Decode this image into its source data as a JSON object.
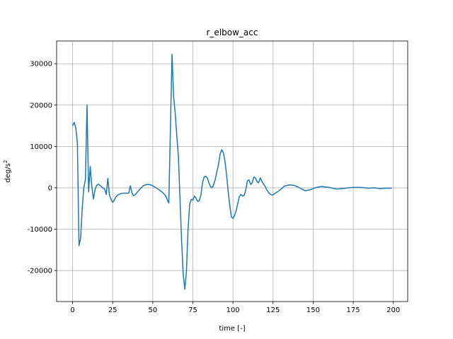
{
  "chart_data": {
    "type": "line",
    "title": "r_elbow_acc",
    "xlabel": "time [-]",
    "ylabel": "deg/s^2",
    "xlim": [
      -9.95,
      208.95
    ],
    "ylim": [
      -27500,
      35500
    ],
    "xticks": [
      0,
      25,
      50,
      75,
      100,
      125,
      150,
      175,
      200
    ],
    "yticks": [
      -20000,
      -10000,
      0,
      10000,
      20000,
      30000
    ],
    "grid": true,
    "legend": "none",
    "series": [
      {
        "color": "#1f77b4",
        "x": [
          0,
          1,
          2,
          3,
          4,
          5,
          6,
          7,
          8,
          9,
          10,
          11,
          12,
          13,
          14,
          15,
          16,
          17,
          18,
          19,
          20,
          21,
          22,
          23,
          24,
          25,
          26,
          27,
          28,
          30,
          32,
          34,
          35,
          36,
          37,
          38,
          39,
          40,
          42,
          44,
          46,
          48,
          50,
          52,
          54,
          56,
          58,
          60,
          62,
          63,
          64,
          65,
          66,
          67,
          68,
          69,
          70,
          71,
          72,
          73,
          74,
          75,
          76,
          77,
          78,
          79,
          80,
          81,
          82,
          83,
          84,
          85,
          86,
          87,
          88,
          89,
          90,
          91,
          92,
          93,
          94,
          95,
          96,
          97,
          98,
          99,
          100,
          101,
          102,
          103,
          104,
          105,
          106,
          107,
          108,
          109,
          110,
          111,
          112,
          113,
          114,
          115,
          116,
          117,
          118,
          119,
          120,
          121,
          122,
          123,
          124,
          125,
          126,
          128,
          130,
          132,
          135,
          138,
          140,
          142,
          145,
          148,
          150,
          152,
          155,
          158,
          160,
          162,
          165,
          168,
          170,
          172,
          175,
          178,
          180,
          182,
          185,
          188,
          190,
          192,
          195,
          199
        ],
        "y": [
          15000,
          15800,
          14500,
          10800,
          -14000,
          -12200,
          -5000,
          0,
          2000,
          20000,
          -1000,
          5200,
          300,
          -2700,
          -500,
          600,
          900,
          600,
          300,
          -100,
          -300,
          -1600,
          2300,
          -1800,
          -2800,
          -3500,
          -3000,
          -2200,
          -1800,
          -1400,
          -1300,
          -1300,
          -1300,
          500,
          -1200,
          -1900,
          -1700,
          -1200,
          -300,
          500,
          800,
          800,
          500,
          0,
          -500,
          -1100,
          -1900,
          -3700,
          32300,
          22000,
          18000,
          12500,
          7500,
          -3000,
          -13000,
          -21000,
          -24500,
          -20000,
          -10000,
          -4000,
          -2800,
          -3000,
          -2000,
          -2500,
          -3300,
          -3100,
          -1800,
          1200,
          2600,
          2800,
          2400,
          1200,
          300,
          0,
          800,
          2100,
          4000,
          5600,
          8200,
          9200,
          8500,
          6500,
          3200,
          -800,
          -4200,
          -7000,
          -7400,
          -6700,
          -5500,
          -3800,
          -2100,
          -1600,
          -2000,
          -1800,
          -500,
          1700,
          1900,
          800,
          1200,
          2600,
          2400,
          1500,
          1200,
          2400,
          1600,
          900,
          400,
          -400,
          -1000,
          -1500,
          -1700,
          -1700,
          -1400,
          -900,
          -300,
          400,
          700,
          600,
          300,
          -100,
          -700,
          -500,
          -200,
          100,
          300,
          200,
          100,
          -100,
          -300,
          -200,
          -100,
          0,
          100,
          100,
          100,
          0,
          -100,
          0,
          -100,
          -200,
          -100,
          -100
        ]
      }
    ]
  }
}
